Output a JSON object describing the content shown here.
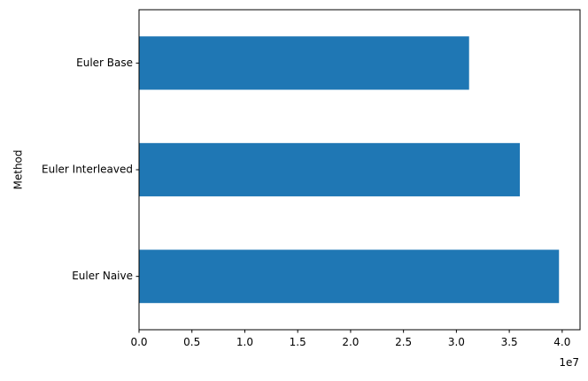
{
  "chart_data": {
    "type": "bar",
    "orientation": "horizontal",
    "categories": [
      "Euler Base",
      "Euler Interleaved",
      "Euler Naive"
    ],
    "values": [
      31200000,
      36000000,
      39700000
    ],
    "xlabel": "",
    "ylabel": "Method",
    "xlim": [
      0,
      41687500
    ],
    "x_ticks": [
      0,
      5000000,
      10000000,
      15000000,
      20000000,
      25000000,
      30000000,
      35000000,
      40000000
    ],
    "x_tick_labels": [
      "0.0",
      "0.5",
      "1.0",
      "1.5",
      "2.0",
      "2.5",
      "3.0",
      "3.5",
      "4.0"
    ],
    "x_offset_text": "1e7",
    "grid": false,
    "bar_color": "#1f77b4"
  }
}
